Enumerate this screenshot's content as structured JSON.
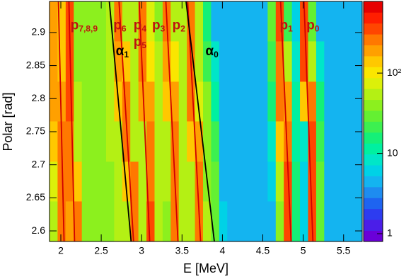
{
  "chart_data": {
    "type": "heatmap",
    "xlabel": "E [MeV]",
    "ylabel": "Polar [rad]",
    "xlim": [
      1.86,
      5.73
    ],
    "ylim": [
      2.584,
      2.947
    ],
    "xticks": [
      2,
      2.5,
      3,
      3.5,
      4,
      4.5,
      5,
      5.5
    ],
    "yticks": [
      2.6,
      2.65,
      2.7,
      2.75,
      2.8,
      2.85,
      2.9
    ],
    "zlim": [
      0.8,
      780
    ],
    "zscale": "log",
    "zticks": [
      1,
      10,
      {
        "value": 100,
        "label": "10²"
      }
    ],
    "palette": [
      "#6a00d8",
      "#4b1ee8",
      "#2d3cf0",
      "#1e64f0",
      "#1e8cf0",
      "#14b4f0",
      "#00d2e6",
      "#00e6c8",
      "#00f0a0",
      "#14f078",
      "#3cf050",
      "#64f032",
      "#8cf01e",
      "#b4f014",
      "#dcf00a",
      "#fae600",
      "#ffc800",
      "#ffa000",
      "#ff7800",
      "#ff4600",
      "#ff1e00",
      "#e60000"
    ],
    "xbins": [
      1.86,
      1.96,
      2.06,
      2.16,
      2.26,
      2.36,
      2.46,
      2.56,
      2.66,
      2.76,
      2.86,
      2.96,
      3.06,
      3.16,
      3.26,
      3.36,
      3.46,
      3.56,
      3.66,
      3.76,
      3.86,
      3.96,
      4.06,
      4.16,
      4.26,
      4.36,
      4.46,
      4.56,
      4.66,
      4.76,
      4.86,
      4.96,
      5.06,
      5.16,
      5.26,
      5.36,
      5.46,
      5.56,
      5.66,
      5.73
    ],
    "ybins": [
      2.584,
      2.645,
      2.705,
      2.766,
      2.826,
      2.887,
      2.947
    ],
    "z": [
      [
        60,
        300,
        200,
        250,
        45,
        40,
        40,
        45,
        50,
        60,
        300,
        60,
        350,
        50,
        45,
        300,
        55,
        50,
        280,
        50,
        30,
        6,
        5,
        4,
        5,
        4,
        5,
        5,
        40,
        350,
        15,
        6,
        400,
        30,
        5,
        4,
        4,
        5,
        5
      ],
      [
        80,
        280,
        250,
        150,
        45,
        40,
        40,
        45,
        55,
        150,
        250,
        55,
        300,
        50,
        50,
        280,
        55,
        55,
        250,
        45,
        25,
        5,
        4,
        5,
        4,
        5,
        4,
        6,
        60,
        320,
        15,
        6,
        380,
        25,
        5,
        4,
        5,
        4,
        4
      ],
      [
        120,
        250,
        300,
        60,
        40,
        45,
        40,
        50,
        60,
        280,
        60,
        50,
        280,
        55,
        60,
        250,
        60,
        150,
        200,
        40,
        20,
        5,
        4,
        4,
        5,
        4,
        5,
        8,
        150,
        300,
        12,
        8,
        350,
        20,
        5,
        5,
        4,
        4,
        5
      ],
      [
        180,
        180,
        320,
        50,
        40,
        40,
        45,
        55,
        120,
        250,
        55,
        180,
        200,
        50,
        150,
        200,
        55,
        250,
        80,
        35,
        12,
        5,
        4,
        5,
        4,
        4,
        5,
        15,
        250,
        200,
        10,
        150,
        250,
        15,
        5,
        4,
        4,
        5,
        4
      ],
      [
        220,
        140,
        330,
        45,
        40,
        40,
        45,
        50,
        200,
        150,
        50,
        280,
        90,
        50,
        220,
        100,
        50,
        280,
        60,
        20,
        8,
        4,
        5,
        4,
        5,
        4,
        4,
        20,
        300,
        60,
        8,
        350,
        60,
        8,
        4,
        5,
        4,
        4,
        5
      ],
      [
        200,
        120,
        350,
        45,
        40,
        35,
        40,
        50,
        250,
        60,
        50,
        300,
        70,
        45,
        250,
        60,
        50,
        300,
        60,
        15,
        5,
        4,
        4,
        5,
        4,
        4,
        5,
        30,
        350,
        20,
        6,
        400,
        25,
        5,
        4,
        4,
        5,
        4,
        4
      ]
    ],
    "curves": [
      {
        "color": "#d00000",
        "x": [
          1.97,
          2.04
        ],
        "y": [
          2.947,
          2.584
        ]
      },
      {
        "color": "#d00000",
        "x": [
          2.1,
          2.17
        ],
        "y": [
          2.947,
          2.584
        ]
      },
      {
        "color": "#d00000",
        "x": [
          2.72,
          2.9
        ],
        "y": [
          2.947,
          2.584
        ]
      },
      {
        "color": "#d00000",
        "x": [
          2.97,
          3.1
        ],
        "y": [
          2.947,
          2.584
        ]
      },
      {
        "color": "#d00000",
        "x": [
          3.3,
          3.45
        ],
        "y": [
          2.947,
          2.584
        ]
      },
      {
        "color": "#d00000",
        "x": [
          3.57,
          3.73
        ],
        "y": [
          2.947,
          2.584
        ]
      },
      {
        "color": "#d00000",
        "x": [
          4.72,
          4.85
        ],
        "y": [
          2.947,
          2.584
        ]
      },
      {
        "color": "#d00000",
        "x": [
          5.01,
          5.12
        ],
        "y": [
          2.947,
          2.584
        ]
      },
      {
        "color": "#000000",
        "x": [
          2.6,
          2.87
        ],
        "y": [
          2.947,
          2.584
        ]
      },
      {
        "color": "#000000",
        "x": [
          3.55,
          3.9
        ],
        "y": [
          2.947,
          2.584
        ]
      }
    ],
    "annotations": [
      {
        "text": "p",
        "sub": "7,8,9",
        "x": 2.12,
        "y": 2.91,
        "color": "#c01010"
      },
      {
        "text": "p",
        "sub": "6",
        "x": 2.65,
        "y": 2.91,
        "color": "#c01010"
      },
      {
        "text": "p",
        "sub": "4",
        "x": 2.9,
        "y": 2.91,
        "color": "#c01010"
      },
      {
        "text": "p",
        "sub": "5",
        "x": 2.9,
        "y": 2.885,
        "color": "#c01010"
      },
      {
        "text": "p",
        "sub": "3",
        "x": 3.13,
        "y": 2.91,
        "color": "#c01010"
      },
      {
        "text": "p",
        "sub": "2",
        "x": 3.38,
        "y": 2.91,
        "color": "#c01010"
      },
      {
        "text": "p",
        "sub": "1",
        "x": 4.71,
        "y": 2.91,
        "color": "#c01010"
      },
      {
        "text": "p",
        "sub": "0",
        "x": 5.04,
        "y": 2.91,
        "color": "#c01010"
      },
      {
        "text": "α",
        "sub": "1",
        "x": 2.68,
        "y": 2.871,
        "color": "#000000"
      },
      {
        "text": "α",
        "sub": "0",
        "x": 3.79,
        "y": 2.871,
        "color": "#000000"
      }
    ]
  }
}
